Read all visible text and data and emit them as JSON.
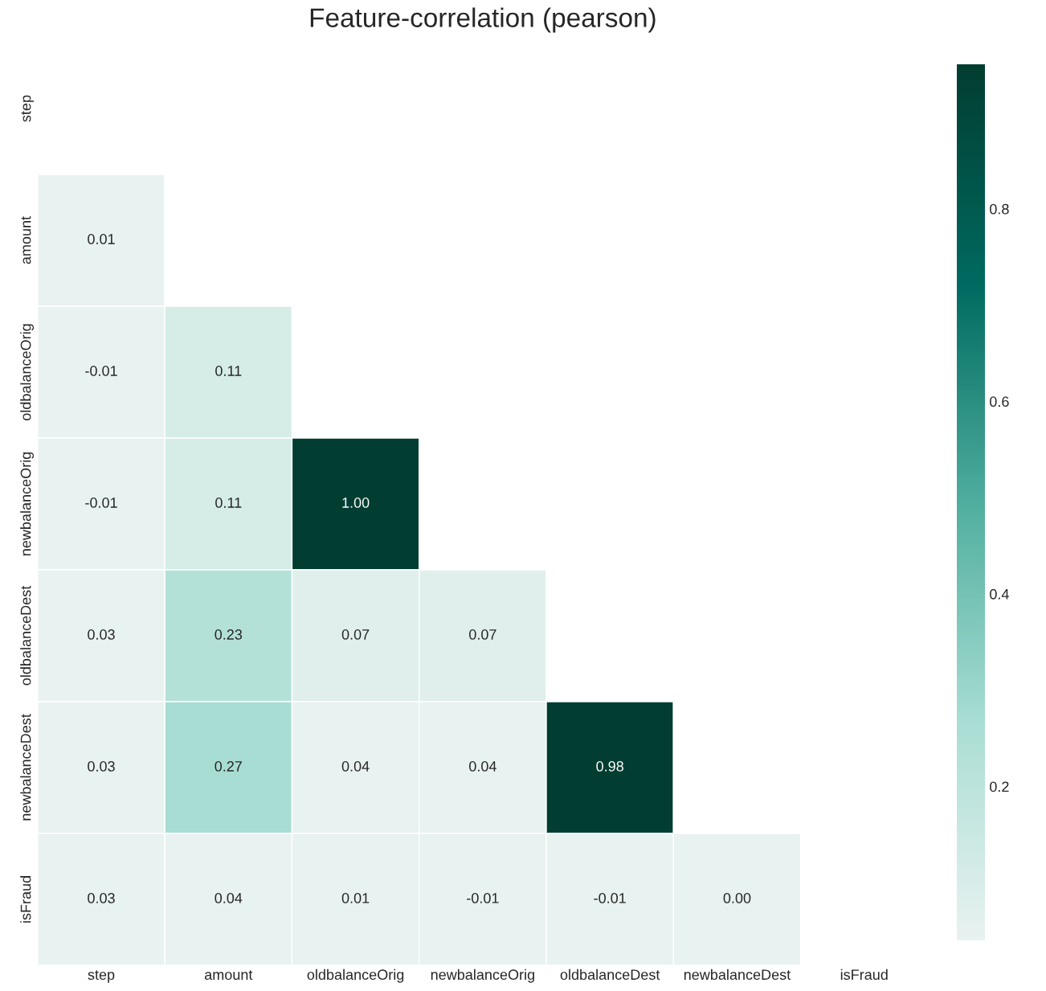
{
  "chart_data": {
    "type": "heatmap",
    "title": "Feature-correlation (pearson)",
    "categories": [
      "step",
      "amount",
      "oldbalanceOrig",
      "newbalanceOrig",
      "oldbalanceDest",
      "newbalanceDest",
      "isFraud"
    ],
    "y_categories": [
      "step",
      "amount",
      "oldbalanceOrig",
      "newbalanceOrig",
      "oldbalanceDest",
      "newbalanceDest",
      "isFraud"
    ],
    "cells": [
      [
        null,
        null,
        null,
        null,
        null,
        null,
        null
      ],
      [
        0.01,
        null,
        null,
        null,
        null,
        null,
        null
      ],
      [
        -0.01,
        0.11,
        null,
        null,
        null,
        null,
        null
      ],
      [
        -0.01,
        0.11,
        1.0,
        null,
        null,
        null,
        null
      ],
      [
        0.03,
        0.23,
        0.07,
        0.07,
        null,
        null,
        null
      ],
      [
        0.03,
        0.27,
        0.04,
        0.04,
        0.98,
        null,
        null
      ],
      [
        0.03,
        0.04,
        0.01,
        -0.01,
        -0.01,
        0.0,
        null
      ]
    ],
    "cell_labels": [
      [
        null,
        null,
        null,
        null,
        null,
        null,
        null
      ],
      [
        "0.01",
        null,
        null,
        null,
        null,
        null,
        null
      ],
      [
        "-0.01",
        "0.11",
        null,
        null,
        null,
        null,
        null
      ],
      [
        "-0.01",
        "0.11",
        "1.00",
        null,
        null,
        null,
        null
      ],
      [
        "0.03",
        "0.23",
        "0.07",
        "0.07",
        null,
        null,
        null
      ],
      [
        "0.03",
        "0.27",
        "0.04",
        "0.04",
        "0.98",
        null,
        null
      ],
      [
        "0.03",
        "0.04",
        "0.01",
        "-0.01",
        "-0.01",
        "0.00",
        null
      ]
    ],
    "data_labels": true,
    "clim": [
      0.04,
      0.95
    ],
    "cticks": [
      0.2,
      0.4,
      0.6,
      0.8
    ]
  }
}
